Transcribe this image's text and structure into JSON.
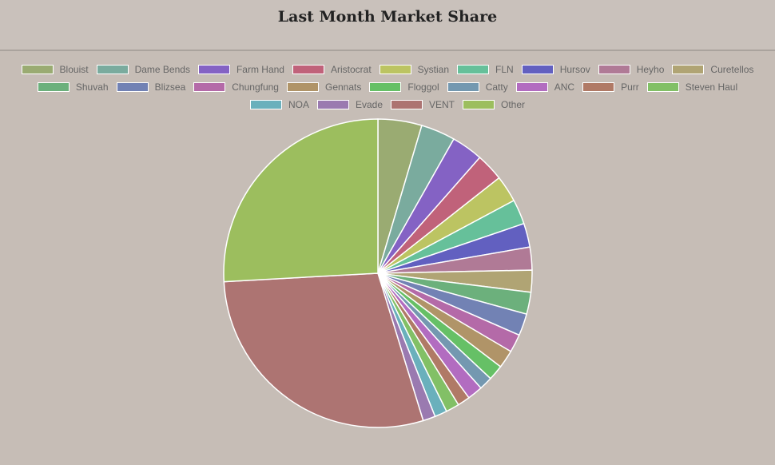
{
  "chart_data": {
    "type": "pie",
    "title": "Last Month Market Share",
    "categories": [
      "Blouist",
      "Dame Bends",
      "Farm Hand",
      "Aristocrat",
      "Systian",
      "FLN",
      "Hursov",
      "Heyho",
      "Curetellos",
      "Shuvah",
      "Blizsea",
      "Chungfung",
      "Gennats",
      "Floggol",
      "Catty",
      "ANC",
      "Purr",
      "Steven Haul",
      "NOA",
      "Evade",
      "VENT",
      "Other"
    ],
    "values": [
      4.6,
      3.6,
      3.3,
      2.9,
      2.8,
      2.6,
      2.5,
      2.4,
      2.3,
      2.3,
      2.3,
      1.9,
      1.9,
      1.6,
      1.4,
      1.6,
      1.3,
      1.4,
      1.3,
      1.3,
      28.9,
      25.9
    ],
    "colors": [
      "#9aab72",
      "#7aab9e",
      "#8462c4",
      "#c0627a",
      "#bcc462",
      "#66c09a",
      "#6260c0",
      "#b07a96",
      "#b0a474",
      "#6cb07c",
      "#7282b4",
      "#b46aa8",
      "#b09468",
      "#66c066",
      "#7498b0",
      "#b26cc0",
      "#b07a66",
      "#82c066",
      "#6ab0bc",
      "#9a7ab0",
      "#ad7472",
      "#9cbe5e"
    ],
    "legend": "top"
  }
}
